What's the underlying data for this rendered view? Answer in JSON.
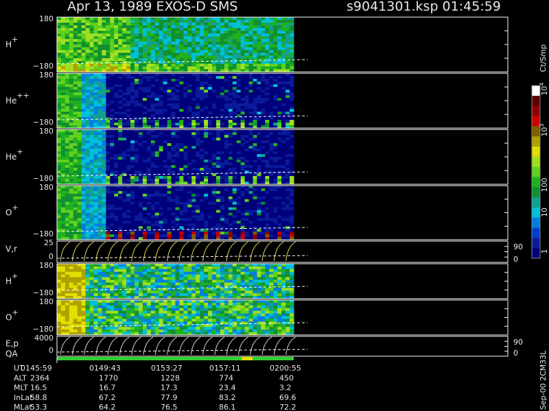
{
  "header": {
    "title": "Apr 13, 1989    EXOS-D SMS",
    "file": "s9041301.ksp  01:45:59"
  },
  "panels": [
    {
      "label": "H",
      "sup": "+",
      "top": "180",
      "bottom": "−180"
    },
    {
      "label": "He",
      "sup": "++",
      "top": "180",
      "bottom": "−180"
    },
    {
      "label": "He",
      "sup": "+",
      "top": "180",
      "bottom": "−180"
    },
    {
      "label": "O",
      "sup": "+",
      "top": "180",
      "bottom": "−180"
    },
    {
      "label": "V,r",
      "sup": "",
      "top": "25",
      "bottom": "0",
      "right_top": "90",
      "right_bottom": "0"
    },
    {
      "label": "H",
      "sup": "+",
      "top": "180",
      "bottom": "−180"
    },
    {
      "label": "O",
      "sup": "+",
      "top": "180",
      "bottom": "−180"
    },
    {
      "label": "E,p",
      "sup": "",
      "top": "4000",
      "bottom": "0",
      "right_top": "90",
      "right_bottom": "0"
    }
  ],
  "qa_label": "QA",
  "colorbar": {
    "unit": "Ct/Smp",
    "ticks": [
      {
        "base": "10",
        "sup": "4"
      },
      {
        "base": "10",
        "sup": "3"
      },
      {
        "base": "100",
        "sup": ""
      },
      {
        "base": "10",
        "sup": ""
      },
      {
        "base": "1",
        "sup": ""
      }
    ]
  },
  "table": {
    "rows": [
      [
        "UT",
        "0145:59",
        "0149:43",
        "0153:27",
        "0157:11",
        "0200:55"
      ],
      [
        "ALT",
        "2364",
        "1770",
        "1228",
        "774",
        "450"
      ],
      [
        "MLT",
        "16.5",
        "16.7",
        "17.3",
        "23.4",
        "3.2"
      ],
      [
        "InLat",
        "58.8",
        "67.2",
        "77.9",
        "83.2",
        "69.6"
      ],
      [
        "MLat",
        "53.3",
        "64.2",
        "76.5",
        "86.1",
        "72.2"
      ]
    ]
  },
  "footer": "Sep-00 2CM33L"
}
